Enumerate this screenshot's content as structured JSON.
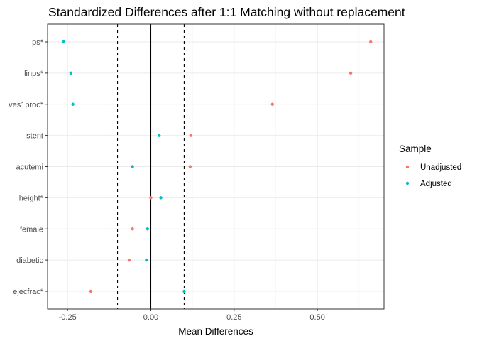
{
  "chart_data": {
    "type": "scatter",
    "title": "Standardized Differences after 1:1 Matching without replacement",
    "xlabel": "Mean Differences",
    "ylabel": "",
    "xlim": [
      -0.31,
      0.7
    ],
    "x_ticks": [
      -0.25,
      0.0,
      0.25,
      0.5
    ],
    "x_tick_labels": [
      "-0.25",
      "0.00",
      "0.25",
      "0.50"
    ],
    "categories": [
      "ps*",
      "linps*",
      "ves1proc*",
      "stent",
      "acutemi",
      "height*",
      "female",
      "diabetic",
      "ejecfrac*"
    ],
    "reference_lines": {
      "solid": [
        0.0
      ],
      "dashed": [
        -0.1,
        0.1
      ]
    },
    "grid": true,
    "legend": {
      "title": "Sample",
      "position": "right"
    },
    "series": [
      {
        "name": "Unadjusted",
        "color": "#F8766D",
        "values": [
          0.66,
          0.6,
          0.365,
          0.12,
          0.118,
          0.0,
          -0.055,
          -0.065,
          -0.18
        ]
      },
      {
        "name": "Adjusted",
        "color": "#00BFC4",
        "values": [
          -0.262,
          -0.24,
          -0.234,
          0.025,
          -0.055,
          0.03,
          -0.01,
          -0.013,
          0.1
        ]
      }
    ]
  }
}
